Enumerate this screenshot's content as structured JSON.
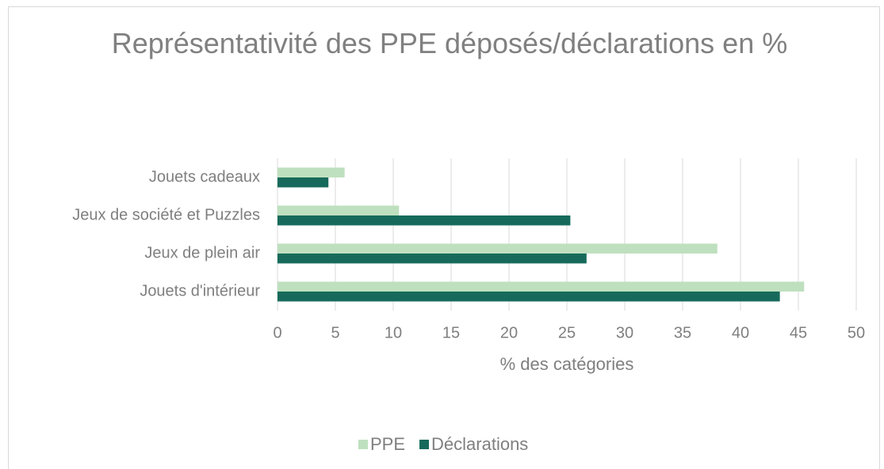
{
  "chart_data": {
    "type": "hbar",
    "title": "Représentativité des PPE déposés/déclarations en %",
    "x_label": "% des catégories",
    "categories": [
      "Jouets cadeaux",
      "Jeux de société et Puzzles",
      "Jeux de plein air",
      "Jouets d'intérieur"
    ],
    "series": [
      {
        "name": "PPE",
        "color": "#bfe0bf",
        "values": [
          5.8,
          10.5,
          38.0,
          45.5
        ]
      },
      {
        "name": "Déclarations",
        "color": "#176a5b",
        "values": [
          4.4,
          25.3,
          26.7,
          43.4
        ]
      }
    ],
    "xlim": [
      0,
      50
    ],
    "xticks": [
      0,
      5,
      10,
      15,
      20,
      25,
      30,
      35,
      40,
      45,
      50
    ],
    "grid": true,
    "legend": "bottom"
  }
}
